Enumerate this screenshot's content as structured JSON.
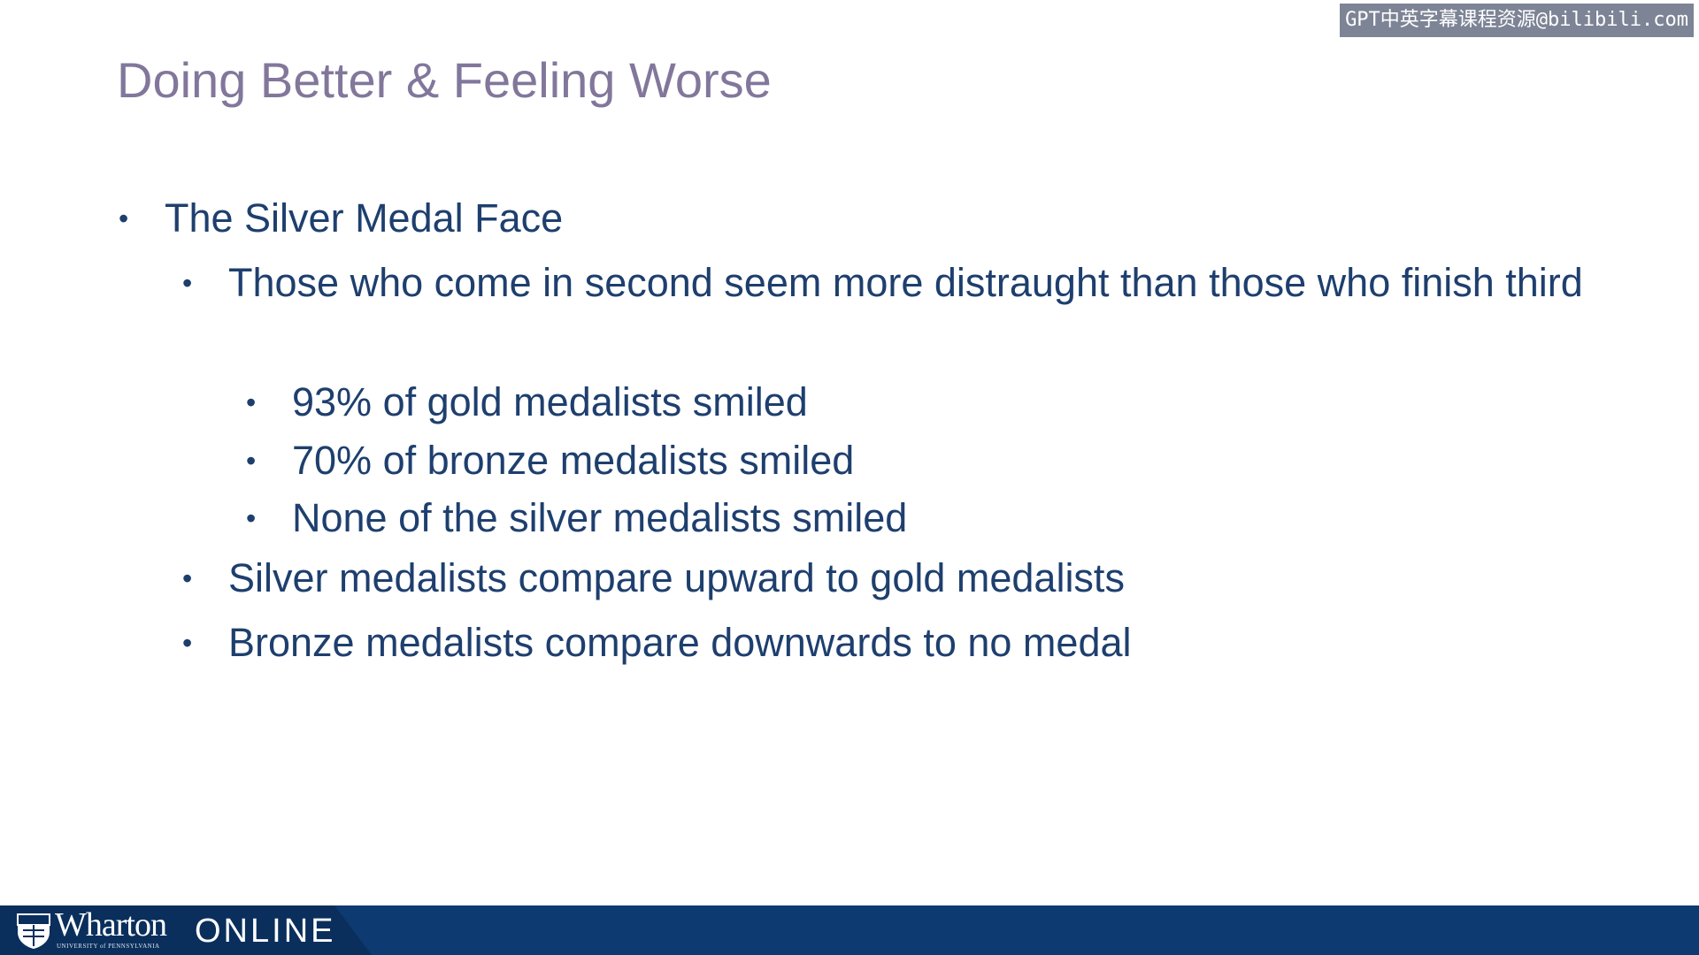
{
  "watermark": "GPT中英字幕课程资源@bilibili.com",
  "slide": {
    "title": "Doing Better & Feeling Worse",
    "bullets": [
      {
        "level": 1,
        "text": "The Silver Medal Face"
      },
      {
        "level": 2,
        "text": "Those who come in second seem more distraught than those who finish third"
      },
      {
        "level": 3,
        "text": "93% of gold medalists smiled"
      },
      {
        "level": 3,
        "text": "70% of bronze medalists smiled"
      },
      {
        "level": 3,
        "text": "None of the silver medalists smiled"
      },
      {
        "level": 2,
        "text": "Silver medalists compare upward to gold medalists"
      },
      {
        "level": 2,
        "text": "Bronze medalists compare downwards to no medal"
      }
    ]
  },
  "footer": {
    "logo_text": "Wharton",
    "logo_subtext": "UNIVERSITY of PENNSYLVANIA",
    "online_label": "ONLINE",
    "bar_color": "#0d3a70"
  }
}
